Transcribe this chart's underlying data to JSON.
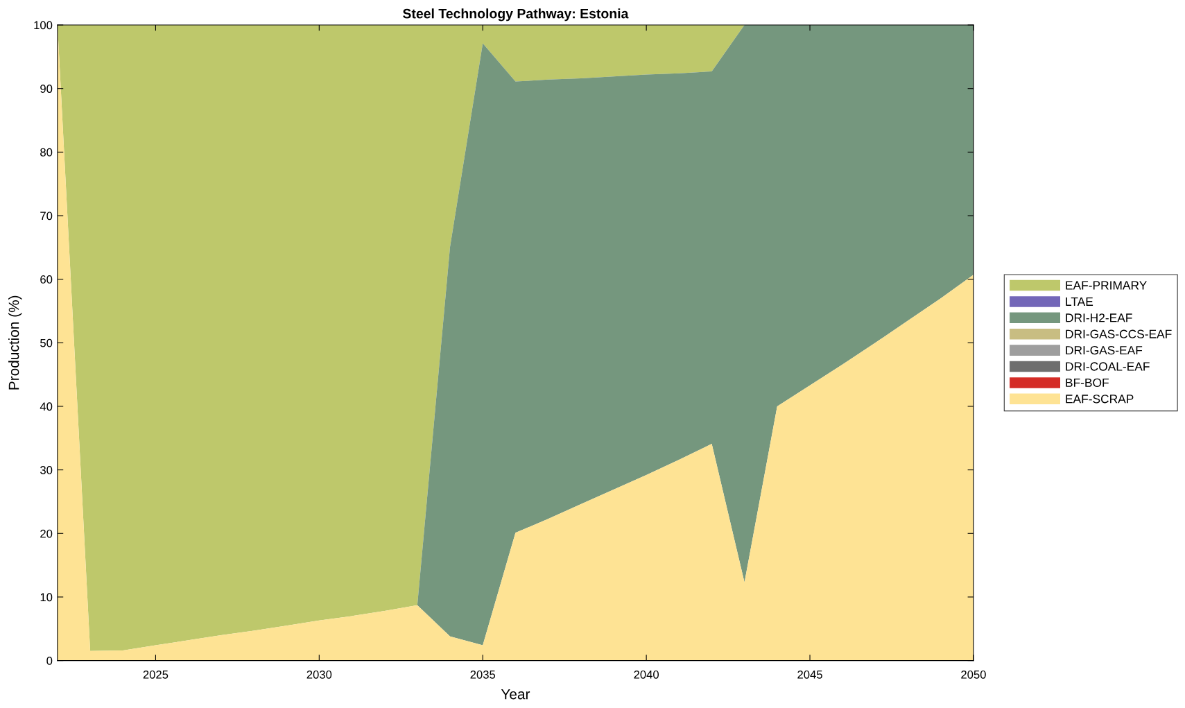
{
  "chart_data": {
    "type": "area",
    "stacked": true,
    "title": "Steel Technology Pathway: Estonia",
    "xlabel": "Year",
    "ylabel": "Production (%)",
    "x": [
      2022,
      2023,
      2024,
      2025,
      2026,
      2027,
      2028,
      2029,
      2030,
      2031,
      2032,
      2033,
      2034,
      2035,
      2036,
      2037,
      2038,
      2039,
      2040,
      2041,
      2042,
      2043,
      2044,
      2045,
      2046,
      2047,
      2048,
      2049,
      2050
    ],
    "series": [
      {
        "name": "EAF-SCRAP",
        "color": "#fee394",
        "values": [
          100,
          1.5,
          1.6,
          2.4,
          3.2,
          4.0,
          4.7,
          5.5,
          6.3,
          7.0,
          7.8,
          8.7,
          3.8,
          2.4,
          20.1,
          22.3,
          24.6,
          26.9,
          29.2,
          31.6,
          34.1,
          12.3,
          40.0,
          43.3,
          46.6,
          50.0,
          53.5,
          57.0,
          60.7
        ]
      },
      {
        "name": "BF-BOF",
        "color": "#d42c26",
        "values": [
          null,
          null,
          null,
          null,
          null,
          null,
          null,
          null,
          null,
          null,
          null,
          null,
          null,
          null,
          null,
          null,
          null,
          null,
          null,
          null,
          null,
          null,
          null,
          null,
          null,
          null,
          null,
          null,
          null
        ]
      },
      {
        "name": "DRI-COAL-EAF",
        "color": "#6e6e6e",
        "values": [
          null,
          null,
          null,
          null,
          null,
          null,
          null,
          null,
          null,
          null,
          null,
          null,
          null,
          null,
          null,
          null,
          null,
          null,
          null,
          null,
          null,
          null,
          null,
          null,
          null,
          null,
          null,
          null,
          null
        ]
      },
      {
        "name": "DRI-GAS-EAF",
        "color": "#9e9e9e",
        "values": [
          null,
          null,
          null,
          null,
          null,
          null,
          null,
          null,
          null,
          null,
          null,
          null,
          null,
          null,
          null,
          null,
          null,
          null,
          null,
          null,
          null,
          null,
          null,
          null,
          null,
          null,
          null,
          null,
          null
        ]
      },
      {
        "name": "DRI-GAS-CCS-EAF",
        "color": "#c8bd82",
        "values": [
          null,
          null,
          null,
          null,
          null,
          null,
          null,
          null,
          null,
          null,
          null,
          null,
          null,
          null,
          null,
          null,
          null,
          null,
          null,
          null,
          null,
          null,
          null,
          null,
          null,
          null,
          null,
          null,
          null
        ]
      },
      {
        "name": "DRI-H2-EAF",
        "color": "#75977e",
        "values": [
          0,
          0,
          0,
          0,
          0,
          0,
          0,
          0,
          0,
          0,
          0,
          0,
          61.3,
          94.7,
          71.0,
          69.1,
          67.0,
          65.0,
          63.0,
          60.8,
          58.6,
          87.7,
          60.0,
          56.7,
          53.4,
          50.0,
          46.5,
          43.0,
          39.3
        ]
      },
      {
        "name": "LTAE",
        "color": "#7367b8",
        "values": [
          null,
          null,
          null,
          null,
          null,
          null,
          null,
          null,
          null,
          null,
          null,
          null,
          null,
          null,
          null,
          null,
          null,
          null,
          null,
          null,
          null,
          null,
          null,
          null,
          null,
          null,
          null,
          null,
          null
        ]
      },
      {
        "name": "EAF-PRIMARY",
        "color": "#bec86b",
        "values": [
          0,
          98.5,
          98.4,
          97.6,
          96.8,
          96.0,
          95.3,
          94.5,
          93.7,
          93.0,
          92.2,
          91.3,
          34.9,
          2.9,
          8.9,
          8.6,
          8.4,
          8.1,
          7.8,
          7.6,
          7.3,
          0,
          null,
          null,
          null,
          null,
          null,
          null,
          null
        ]
      }
    ],
    "xlim": [
      2022,
      2050
    ],
    "xticks": [
      2025,
      2030,
      2035,
      2040,
      2045,
      2050
    ],
    "ylim": [
      0,
      100
    ],
    "yticks": [
      0,
      10,
      20,
      30,
      40,
      50,
      60,
      70,
      80,
      90,
      100
    ],
    "grid": false,
    "legend": "right"
  }
}
